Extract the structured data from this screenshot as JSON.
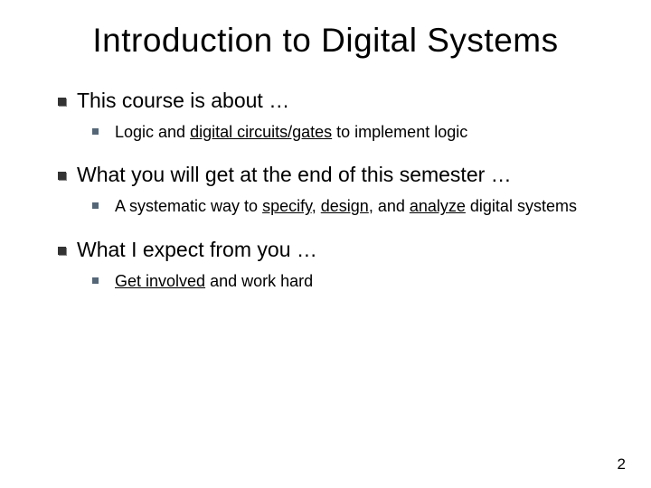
{
  "title": "Introduction to Digital Systems",
  "pageNumber": "2",
  "colors": {
    "topBullet": "#333333",
    "topBulletShadow": "#888888",
    "subBullet": "#556677",
    "text": "#000000",
    "background": "#ffffff"
  },
  "typography": {
    "titleFontSize": 37,
    "topTextFontSize": 23,
    "subTextFontSize": 18,
    "pageNumFontSize": 17
  },
  "items": [
    {
      "text": "This course is about …",
      "sub": [
        {
          "segments": [
            {
              "t": "Logic and ",
              "u": false
            },
            {
              "t": "digital circuits/gates",
              "u": true
            },
            {
              "t": " to implement logic",
              "u": false
            }
          ]
        }
      ]
    },
    {
      "text": "What you will get at the end of this semester …",
      "sub": [
        {
          "segments": [
            {
              "t": "A systematic way to ",
              "u": false
            },
            {
              "t": "specify",
              "u": true
            },
            {
              "t": ", ",
              "u": false
            },
            {
              "t": "design",
              "u": true
            },
            {
              "t": ", and ",
              "u": false
            },
            {
              "t": "analyze",
              "u": true
            },
            {
              "t": " digital systems",
              "u": false
            }
          ]
        }
      ]
    },
    {
      "text": "What I expect from you …",
      "sub": [
        {
          "segments": [
            {
              "t": "Get involved",
              "u": true
            },
            {
              "t": " and work hard",
              "u": false
            }
          ]
        }
      ]
    }
  ]
}
